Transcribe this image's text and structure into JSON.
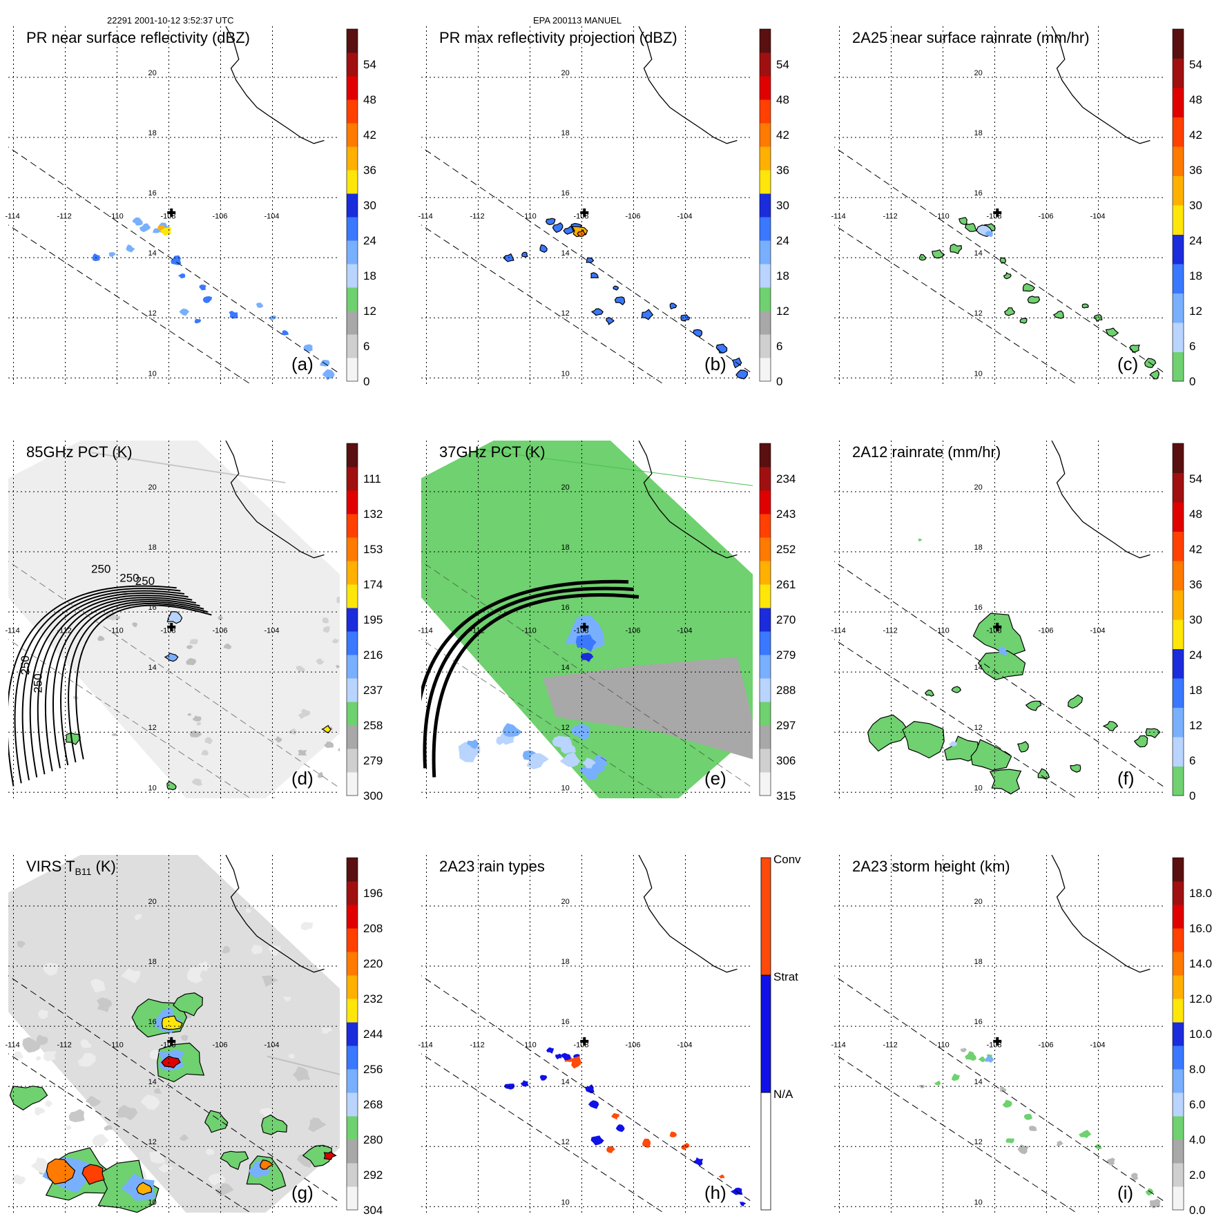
{
  "header": {
    "left": "22291 2001-10-12 3:52:37 UTC",
    "center": "EPA 200113 MANUEL"
  },
  "chart_data": [
    {
      "type": "heatmap",
      "panel": "(a)",
      "title": "PR near surface reflectivity (dBZ)",
      "colorbar_ticks": [
        "0",
        "6",
        "12",
        "18",
        "24",
        "30",
        "36",
        "42",
        "48",
        "54"
      ],
      "colorbar_colors": [
        "#f4f4f4",
        "#cfcfcf",
        "#a8a8a8",
        "#6fd16f",
        "#b8d4ff",
        "#78b0ff",
        "#3a78ff",
        "#1a2cdc",
        "#ffe60a",
        "#ffb000",
        "#ff7a00",
        "#ff4000",
        "#e00000",
        "#a01010",
        "#5a1010"
      ],
      "x_ticks": [
        "-114",
        "-112",
        "-110",
        "-108",
        "-106",
        "-104"
      ],
      "y_ticks": [
        "20",
        "18",
        "16",
        "14",
        "12",
        "10"
      ],
      "center_marker": "storm center +",
      "scene": "pr"
    },
    {
      "type": "heatmap",
      "panel": "(b)",
      "title": "PR max reflectivity projection (dBZ)",
      "colorbar_ticks": [
        "0",
        "6",
        "12",
        "18",
        "24",
        "30",
        "36",
        "42",
        "48",
        "54"
      ],
      "colorbar_colors": [
        "#f4f4f4",
        "#cfcfcf",
        "#a8a8a8",
        "#6fd16f",
        "#b8d4ff",
        "#78b0ff",
        "#3a78ff",
        "#1a2cdc",
        "#ffe60a",
        "#ffb000",
        "#ff7a00",
        "#ff4000",
        "#e00000",
        "#a01010",
        "#5a1010"
      ],
      "x_ticks": [
        "-114",
        "-112",
        "-110",
        "-108",
        "-106",
        "-104"
      ],
      "y_ticks": [
        "20",
        "18",
        "16",
        "14",
        "12",
        "10"
      ],
      "center_marker": "storm center +",
      "scene": "pr"
    },
    {
      "type": "heatmap",
      "panel": "(c)",
      "title": "2A25 near surface rainrate (mm/hr)",
      "colorbar_ticks": [
        "0",
        "6",
        "12",
        "18",
        "24",
        "30",
        "36",
        "42",
        "48",
        "54"
      ],
      "colorbar_colors": [
        "#6fd16f",
        "#b8d4ff",
        "#78b0ff",
        "#3a78ff",
        "#1a2cdc",
        "#ffe60a",
        "#ffb000",
        "#ff7a00",
        "#ff4000",
        "#e00000",
        "#a01010",
        "#5a1010"
      ],
      "x_ticks": [
        "-114",
        "-112",
        "-110",
        "-108",
        "-106",
        "-104"
      ],
      "y_ticks": [
        "20",
        "18",
        "16",
        "14",
        "12",
        "10"
      ],
      "center_marker": "storm center +",
      "scene": "pr"
    },
    {
      "type": "heatmap",
      "panel": "(d)",
      "title": "85GHz PCT (K)",
      "colorbar_ticks": [
        "300",
        "279",
        "258",
        "237",
        "216",
        "195",
        "174",
        "153",
        "132",
        "111"
      ],
      "colorbar_colors": [
        "#f4f4f4",
        "#cfcfcf",
        "#a8a8a8",
        "#6fd16f",
        "#b8d4ff",
        "#78b0ff",
        "#3a78ff",
        "#1a2cdc",
        "#ffe60a",
        "#ffb000",
        "#ff7a00",
        "#ff4000",
        "#e00000",
        "#a01010",
        "#5a1010"
      ],
      "contour_labels": [
        "250",
        "250",
        "250",
        "250",
        "250"
      ],
      "x_ticks": [
        "-114",
        "-112",
        "-110",
        "-108",
        "-106",
        "-104"
      ],
      "y_ticks": [
        "20",
        "18",
        "16",
        "14",
        "12",
        "10"
      ],
      "center_marker": "storm center +",
      "scene": "tmi85"
    },
    {
      "type": "heatmap",
      "panel": "(e)",
      "title": "37GHz PCT (K)",
      "colorbar_ticks": [
        "315",
        "306",
        "297",
        "288",
        "279",
        "270",
        "261",
        "252",
        "243",
        "234"
      ],
      "colorbar_colors": [
        "#f4f4f4",
        "#cfcfcf",
        "#a8a8a8",
        "#6fd16f",
        "#b8d4ff",
        "#78b0ff",
        "#3a78ff",
        "#1a2cdc",
        "#ffe60a",
        "#ffb000",
        "#ff7a00",
        "#ff4000",
        "#e00000",
        "#a01010",
        "#5a1010"
      ],
      "x_ticks": [
        "-114",
        "-112",
        "-110",
        "-108",
        "-106",
        "-104"
      ],
      "y_ticks": [
        "20",
        "18",
        "16",
        "14",
        "12",
        "10"
      ],
      "center_marker": "storm center +",
      "scene": "tmi37"
    },
    {
      "type": "heatmap",
      "panel": "(f)",
      "title": "2A12 rainrate (mm/hr)",
      "colorbar_ticks": [
        "0",
        "6",
        "12",
        "18",
        "24",
        "30",
        "36",
        "42",
        "48",
        "54"
      ],
      "colorbar_colors": [
        "#6fd16f",
        "#b8d4ff",
        "#78b0ff",
        "#3a78ff",
        "#1a2cdc",
        "#ffe60a",
        "#ffb000",
        "#ff7a00",
        "#ff4000",
        "#e00000",
        "#a01010",
        "#5a1010"
      ],
      "x_ticks": [
        "-114",
        "-112",
        "-110",
        "-108",
        "-106",
        "-104"
      ],
      "y_ticks": [
        "20",
        "18",
        "16",
        "14",
        "12",
        "10"
      ],
      "center_marker": "storm center +",
      "scene": "tmirain"
    },
    {
      "type": "heatmap",
      "panel": "(g)",
      "title": "VIRS T",
      "title_sub": "B11",
      "title_unit": " (K)",
      "colorbar_ticks": [
        "304",
        "292",
        "280",
        "268",
        "256",
        "244",
        "232",
        "220",
        "208",
        "196"
      ],
      "colorbar_colors": [
        "#f4f4f4",
        "#cfcfcf",
        "#a8a8a8",
        "#6fd16f",
        "#b8d4ff",
        "#78b0ff",
        "#3a78ff",
        "#1a2cdc",
        "#ffe60a",
        "#ffb000",
        "#ff7a00",
        "#ff4000",
        "#e00000",
        "#a01010",
        "#5a1010"
      ],
      "x_ticks": [
        "-114",
        "-112",
        "-110",
        "-108",
        "-106",
        "-104"
      ],
      "y_ticks": [
        "20",
        "18",
        "16",
        "14",
        "12",
        "10"
      ],
      "center_marker": "storm center +",
      "scene": "virs"
    },
    {
      "type": "heatmap",
      "panel": "(h)",
      "title": "2A23 rain types",
      "colorbar_categories": [
        "N/A",
        "Strat",
        "Conv"
      ],
      "colorbar_colors": [
        "#ffffff",
        "#1010e8",
        "#ff4a0a"
      ],
      "x_ticks": [
        "-114",
        "-112",
        "-110",
        "-108",
        "-106",
        "-104"
      ],
      "y_ticks": [
        "20",
        "18",
        "16",
        "14",
        "12",
        "10"
      ],
      "center_marker": "storm center +",
      "scene": "types"
    },
    {
      "type": "heatmap",
      "panel": "(i)",
      "title": "2A23 storm height (km)",
      "colorbar_ticks": [
        "0.0",
        "2.0",
        "4.0",
        "6.0",
        "8.0",
        "10.0",
        "12.0",
        "14.0",
        "16.0",
        "18.0"
      ],
      "colorbar_colors": [
        "#f4f4f4",
        "#cfcfcf",
        "#a8a8a8",
        "#6fd16f",
        "#b8d4ff",
        "#78b0ff",
        "#3a78ff",
        "#1a2cdc",
        "#ffe60a",
        "#ffb000",
        "#ff7a00",
        "#ff4000",
        "#e00000",
        "#a01010",
        "#5a1010"
      ],
      "x_ticks": [
        "-114",
        "-112",
        "-110",
        "-108",
        "-106",
        "-104"
      ],
      "y_ticks": [
        "20",
        "18",
        "16",
        "14",
        "12",
        "10"
      ],
      "center_marker": "storm center +",
      "scene": "height"
    }
  ]
}
